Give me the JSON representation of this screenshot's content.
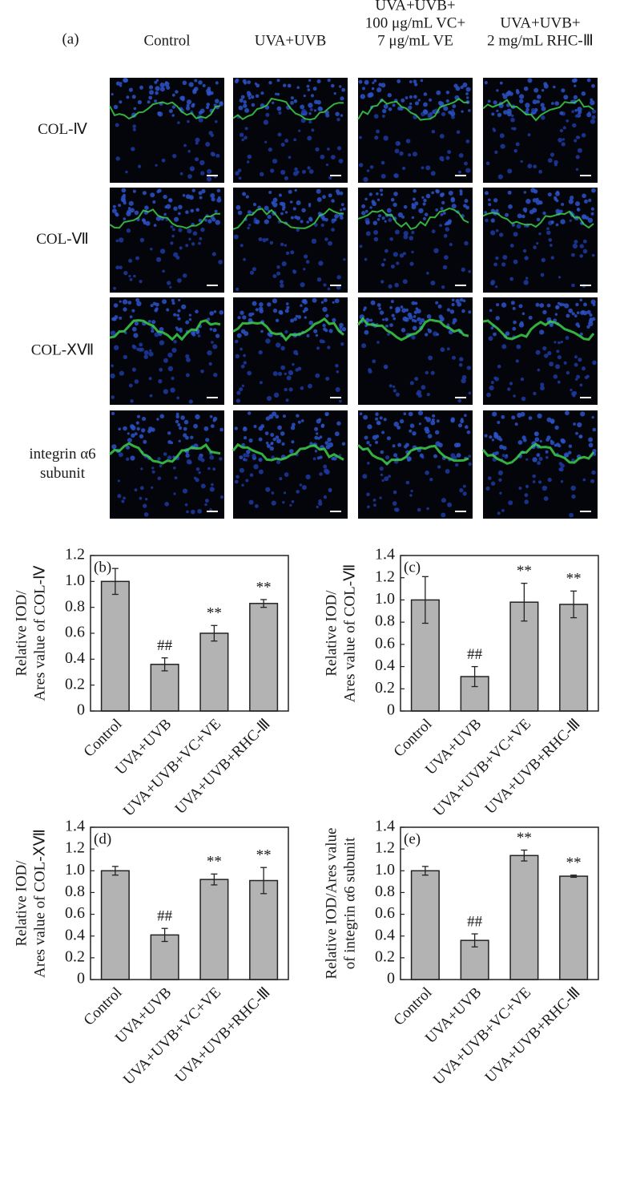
{
  "panel_a": {
    "label": "(a)",
    "columns": [
      [
        "Control"
      ],
      [
        "UVA+UVB"
      ],
      [
        "UVA+UVB+",
        "100 μg/mL VC+",
        "7 μg/mL VE"
      ],
      [
        "UVA+UVB+",
        "2 mg/mL RHC-Ⅲ"
      ]
    ],
    "rows": [
      [
        "COL-Ⅳ"
      ],
      [
        "COL-Ⅶ"
      ],
      [
        "COL-ⅩⅦ"
      ],
      [
        "integrin α6",
        "subunit"
      ]
    ]
  },
  "chart_data": [
    {
      "type": "bar",
      "panel_label": "(b)",
      "ylabel": [
        "Relative IOD/",
        "Ares value of COL-Ⅳ"
      ],
      "categories": [
        "Control",
        "UVA+UVB",
        "UVA+UVB+VC+VE",
        "UVA+UVB+RHC-Ⅲ"
      ],
      "values": [
        1.0,
        0.36,
        0.6,
        0.83
      ],
      "errors": [
        0.1,
        0.05,
        0.06,
        0.03
      ],
      "bar_labels": [
        null,
        "##",
        "**",
        "**"
      ],
      "color": "#b3b3b3",
      "ylim": [
        0,
        1.2
      ],
      "yticks": [
        0,
        0.2,
        0.4,
        0.6,
        0.8,
        {
          "value": 1,
          "label": "1.0"
        },
        1.2
      ]
    },
    {
      "type": "bar",
      "panel_label": "(c)",
      "ylabel": [
        "Relative IOD/",
        "Ares value of COL-Ⅶ"
      ],
      "categories": [
        "Control",
        "UVA+UVB",
        "UVA+UVB+VC+VE",
        "UVA+UVB+RHC-Ⅲ"
      ],
      "values": [
        1.0,
        0.31,
        0.98,
        0.96
      ],
      "errors": [
        0.21,
        0.09,
        0.17,
        0.12
      ],
      "bar_labels": [
        null,
        "##",
        "**",
        "**"
      ],
      "color": "#b3b3b3",
      "ylim": [
        0,
        1.4
      ],
      "yticks": [
        0,
        0.2,
        0.4,
        0.6,
        0.8,
        {
          "value": 1,
          "label": "1.0"
        },
        1.2,
        1.4
      ]
    },
    {
      "type": "bar",
      "panel_label": "(d)",
      "ylabel": [
        "Relative IOD/",
        "Ares value of COL-ⅩⅦ"
      ],
      "categories": [
        "Control",
        "UVA+UVB",
        "UVA+UVB+VC+VE",
        "UVA+UVB+RHC-Ⅲ"
      ],
      "values": [
        1.0,
        0.41,
        0.92,
        0.91
      ],
      "errors": [
        0.04,
        0.06,
        0.05,
        0.12
      ],
      "bar_labels": [
        null,
        "##",
        "**",
        "**"
      ],
      "color": "#b3b3b3",
      "ylim": [
        0,
        1.4
      ],
      "yticks": [
        0,
        0.2,
        0.4,
        0.6,
        0.8,
        {
          "value": 1,
          "label": "1.0"
        },
        1.2,
        1.4
      ]
    },
    {
      "type": "bar",
      "panel_label": "(e)",
      "ylabel": [
        "Relative IOD/Ares value",
        "of integrin α6 subunit"
      ],
      "categories": [
        "Control",
        "UVA+UVB",
        "UVA+UVB+VC+VE",
        "UVA+UVB+RHC-Ⅲ"
      ],
      "values": [
        1.0,
        0.36,
        1.14,
        0.95
      ],
      "errors": [
        0.04,
        0.06,
        0.05,
        0.01
      ],
      "bar_labels": [
        null,
        "##",
        "**",
        "**"
      ],
      "color": "#b3b3b3",
      "ylim": [
        0,
        1.4
      ],
      "yticks": [
        0,
        0.2,
        0.4,
        0.6,
        0.8,
        {
          "value": 1,
          "label": "1.0"
        },
        1.2,
        1.4
      ]
    }
  ]
}
